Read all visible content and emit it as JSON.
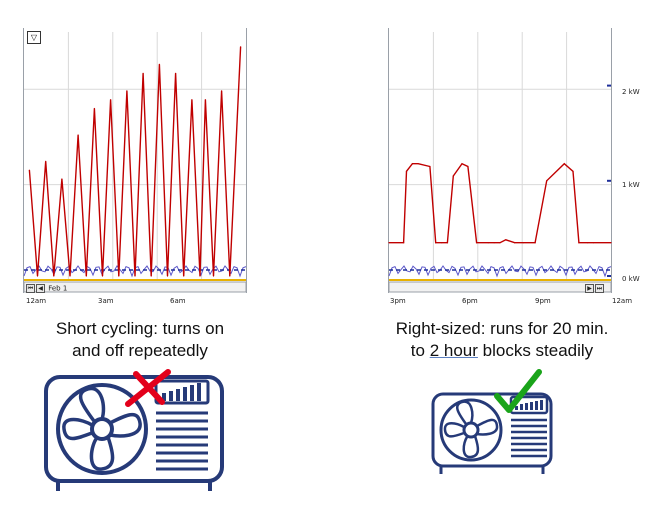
{
  "colors": {
    "power": "#c00000",
    "secondary": "#5b57c9",
    "dashed": "#1f2f9a",
    "baseline": "#e8b100",
    "icon": "#263a78",
    "bad": "#e3001b",
    "good": "#1aa41a"
  },
  "left": {
    "caption_line1": "Short cycling: turns on",
    "caption_line2": "and off repeatedly",
    "date_label": "Feb 1",
    "icons": {
      "unit": "ac-outdoor-unit-icon",
      "mark": "red-x-icon"
    }
  },
  "right": {
    "caption_line1": "Right-sized: runs for 20 min.",
    "caption_pre": "to ",
    "caption_link": "2 hour",
    "caption_post": " blocks steadily",
    "icons": {
      "unit": "ac-outdoor-unit-icon",
      "mark": "green-check-icon"
    }
  },
  "chart_data": [
    {
      "type": "line",
      "x_tick_labels": [
        "12am",
        "3am",
        "6am"
      ],
      "series": [
        {
          "color": "#c00000",
          "x": [
            0.2,
            0.5,
            0.8,
            1.1,
            1.4,
            1.7,
            2.0,
            2.3,
            2.6,
            2.9,
            3.2,
            3.5,
            3.8,
            4.1,
            4.4,
            4.7,
            5.0,
            5.3,
            5.6,
            5.9,
            6.2,
            6.5,
            6.7,
            7.0,
            7.3,
            7.6,
            8.0
          ],
          "y": [
            1.2,
            0.0,
            1.3,
            0.0,
            1.1,
            0.0,
            1.6,
            0.0,
            1.9,
            0.0,
            2.0,
            0.0,
            2.1,
            0.0,
            2.3,
            0.0,
            2.4,
            0.0,
            2.3,
            0.0,
            2.0,
            0.0,
            2.0,
            0.0,
            2.1,
            0.0,
            2.6
          ]
        }
      ]
    },
    {
      "type": "line",
      "x_tick_labels": [
        "3pm",
        "6pm",
        "9pm",
        "12am"
      ],
      "y_tick_labels": [
        "0 kW",
        "1 kW",
        "2 kW"
      ],
      "ylim": [
        0,
        2.5
      ],
      "series": [
        {
          "color": "#c00000",
          "x": [
            0,
            0.5,
            0.6,
            0.8,
            1.0,
            1.4,
            1.6,
            1.8,
            2.0,
            2.2,
            2.5,
            2.7,
            3.0,
            3.4,
            3.6,
            3.8,
            4.0,
            4.3,
            4.6,
            5.0,
            5.4,
            6.0,
            6.3,
            6.5,
            6.8,
            7.0,
            7.6
          ],
          "y": [
            0.35,
            0.35,
            1.1,
            1.18,
            1.18,
            1.15,
            0.35,
            0.35,
            0.35,
            1.05,
            1.18,
            1.15,
            0.35,
            0.35,
            0.35,
            0.35,
            0.38,
            0.35,
            0.35,
            0.35,
            1.0,
            1.18,
            1.1,
            0.35,
            0.35,
            0.35,
            0.35
          ]
        }
      ]
    }
  ]
}
